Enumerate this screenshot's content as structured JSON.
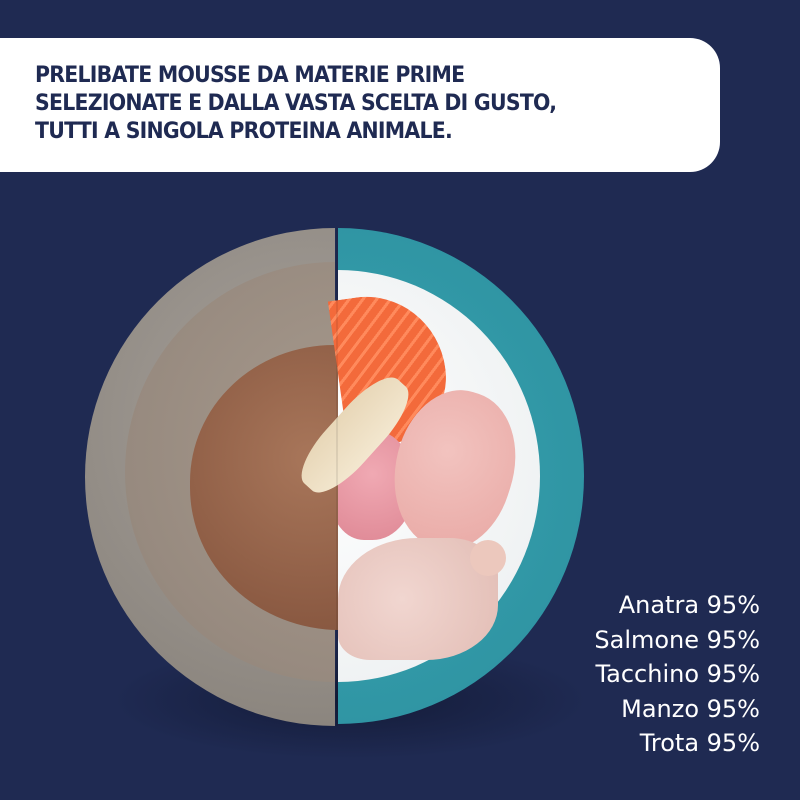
{
  "colors": {
    "background": "#1f2a52",
    "banner": "#ffffff",
    "headline_text": "#1f2a52",
    "list_text": "#ffffff",
    "plate_rim": "#2e93a2"
  },
  "headline": {
    "lines": [
      "PRELIBATE MOUSSE DA MATERIE PRIME",
      "SELEZIONATE E DALLA VASTA SCELTA DI GUSTO,",
      "TUTTI A SINGOLA PROTEINA ANIMALE."
    ]
  },
  "flavors": [
    {
      "label": "Anatra 95%"
    },
    {
      "label": "Salmone 95%"
    },
    {
      "label": "Tacchino 95%"
    },
    {
      "label": "Manzo 95%"
    },
    {
      "label": "Trota 95%"
    }
  ]
}
